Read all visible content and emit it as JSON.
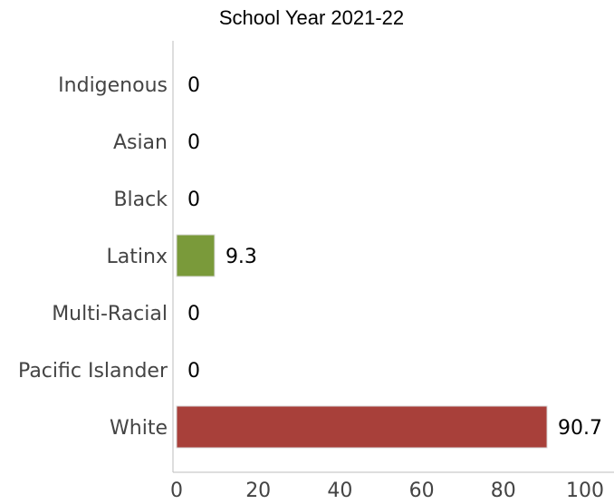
{
  "chart_data": {
    "type": "bar",
    "orientation": "horizontal",
    "title": "School Year 2021-22",
    "xlabel": "",
    "ylabel": "",
    "categories": [
      "Indigenous",
      "Asian",
      "Black",
      "Latinx",
      "Multi-Racial",
      "Pacific Islander",
      "White"
    ],
    "values": [
      0,
      0,
      0,
      9.3,
      0,
      0,
      90.7
    ],
    "value_labels": [
      "0",
      "0",
      "0",
      "9.3",
      "0",
      "0",
      "90.7"
    ],
    "bar_colors": [
      "#7a9a3a",
      "#7a9a3a",
      "#7a9a3a",
      "#7a9a3a",
      "#7a9a3a",
      "#7a9a3a",
      "#a8403a"
    ],
    "xlim": [
      0,
      108
    ],
    "xticks": [
      0,
      20,
      40,
      60,
      80,
      100
    ],
    "grid": false,
    "legend": "none"
  }
}
